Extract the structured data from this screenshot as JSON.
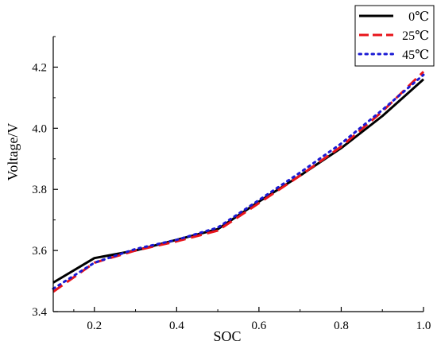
{
  "chart_data": {
    "type": "line",
    "title": "",
    "xlabel": "SOC",
    "ylabel": "Voltage/V",
    "xlim": [
      0.1,
      1.0
    ],
    "ylim": [
      3.4,
      4.3
    ],
    "x_ticks": [
      0.2,
      0.4,
      0.6,
      0.8,
      1.0
    ],
    "x_tick_labels": [
      "0.2",
      "0.4",
      "0.6",
      "0.8",
      "1.0"
    ],
    "y_ticks": [
      3.4,
      3.6,
      3.8,
      4.0,
      4.2
    ],
    "y_tick_labels": [
      "3.4",
      "3.6",
      "3.8",
      "4.0",
      "4.2"
    ],
    "grid": false,
    "legend_position": "top-right",
    "series": [
      {
        "name": "0℃",
        "color": "#000000",
        "style": "solid",
        "x": [
          0.1,
          0.2,
          0.3,
          0.4,
          0.5,
          0.6,
          0.7,
          0.8,
          0.9,
          1.0
        ],
        "y": [
          3.495,
          3.575,
          3.6,
          3.635,
          3.67,
          3.76,
          3.845,
          3.935,
          4.04,
          4.16
        ]
      },
      {
        "name": "25℃",
        "color": "#e8141b",
        "style": "dashed",
        "x": [
          0.1,
          0.2,
          0.3,
          0.4,
          0.5,
          0.6,
          0.7,
          0.8,
          0.9,
          1.0
        ],
        "y": [
          3.465,
          3.56,
          3.6,
          3.63,
          3.665,
          3.755,
          3.845,
          3.94,
          4.055,
          4.185
        ]
      },
      {
        "name": "45℃",
        "color": "#1a1ad4",
        "style": "dotted",
        "x": [
          0.1,
          0.2,
          0.3,
          0.4,
          0.5,
          0.6,
          0.7,
          0.8,
          0.9,
          1.0
        ],
        "y": [
          3.475,
          3.56,
          3.605,
          3.635,
          3.675,
          3.765,
          3.855,
          3.95,
          4.06,
          4.175
        ]
      }
    ]
  }
}
